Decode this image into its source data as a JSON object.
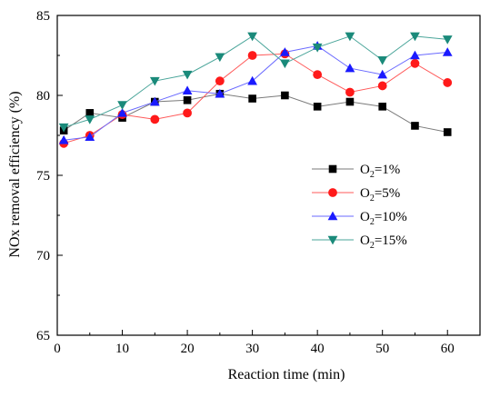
{
  "chart_data": {
    "type": "line",
    "title": "",
    "xlabel": "Reaction time (min)",
    "ylabel": "NOx removal efficiency (%)",
    "xlim": [
      0,
      65
    ],
    "ylim": [
      65,
      85
    ],
    "x_ticks": [
      0,
      10,
      20,
      30,
      40,
      50,
      60
    ],
    "y_ticks": [
      65,
      70,
      75,
      80,
      85
    ],
    "grid": false,
    "legend_position": "center-right",
    "x": [
      1,
      5,
      10,
      15,
      20,
      25,
      30,
      35,
      40,
      45,
      50,
      55,
      60
    ],
    "series": [
      {
        "name_prefix": "O",
        "name_sub": "2",
        "name_suffix": "=1%",
        "marker": "square",
        "color": "#000000",
        "line_color": "#7a7a7a",
        "values": [
          77.8,
          78.9,
          78.6,
          79.6,
          79.7,
          80.1,
          79.8,
          80.0,
          79.3,
          79.6,
          79.3,
          78.1,
          77.7
        ]
      },
      {
        "name_prefix": "O",
        "name_sub": "2",
        "name_suffix": "=5%",
        "marker": "circle",
        "color": "#ff1a1a",
        "line_color": "#ff5a5a",
        "values": [
          77.0,
          77.5,
          78.8,
          78.5,
          78.9,
          80.9,
          82.5,
          82.6,
          81.3,
          80.2,
          80.6,
          82.0,
          80.8
        ]
      },
      {
        "name_prefix": "O",
        "name_sub": "2",
        "name_suffix": "=10%",
        "marker": "triangle-up",
        "color": "#1a1aff",
        "line_color": "#6a6aff",
        "values": [
          77.2,
          77.4,
          78.9,
          79.6,
          80.3,
          80.1,
          80.9,
          82.7,
          83.1,
          81.7,
          81.3,
          82.5,
          82.7
        ]
      },
      {
        "name_prefix": "O",
        "name_sub": "2",
        "name_suffix": "=15%",
        "marker": "triangle-down",
        "color": "#1a8a7a",
        "line_color": "#4aa59a",
        "values": [
          78.0,
          78.5,
          79.4,
          80.9,
          81.3,
          82.4,
          83.7,
          82.0,
          83.0,
          83.7,
          82.2,
          83.7,
          83.5
        ]
      }
    ]
  }
}
